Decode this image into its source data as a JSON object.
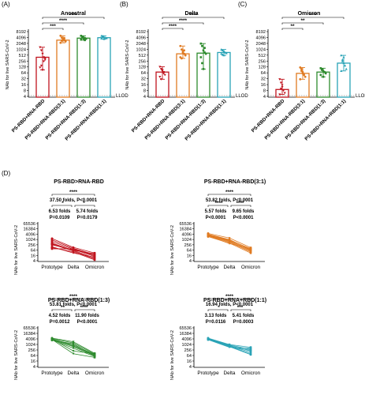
{
  "colors": {
    "red": "#c0141e",
    "orange": "#e07b22",
    "green": "#2e8b2e",
    "teal": "#2aa3b6",
    "dashed": "#666666"
  },
  "panel_labels": {
    "A": "(A)",
    "B": "(B)",
    "C": "(C)",
    "D": "(D)"
  },
  "ylabel": "NAb for live SARS-CoV-2",
  "lod_label": "LLOD",
  "top_categories": [
    "PS-RBD+RNA-RBD",
    "PS-RBD+RNA-RBD(3:1)",
    "PS-RBD+RNA-RBD(1:3)",
    "PS-RBD+RNA+RBD(1:1)"
  ],
  "top_yticks": [
    "8192",
    "4096",
    "2048",
    "1024",
    "512",
    "256",
    "128",
    "64",
    "32",
    "16",
    "8",
    "4"
  ],
  "bottom_yticks": [
    "65536",
    "16384",
    "4096",
    "1024",
    "256",
    "64",
    "16",
    "4"
  ],
  "bottom_xticks": [
    "Prototype",
    "Delta",
    "Omicron"
  ],
  "chart_data": [
    {
      "type": "bar",
      "panel": "A",
      "title": "Ancestral",
      "ylabel": "NAb for live SARS-CoV-2",
      "yscale": "log2",
      "ylim": [
        4,
        8192
      ],
      "categories": [
        "PS-RBD+RNA-RBD",
        "PS-RBD+RNA-RBD(3:1)",
        "PS-RBD+RNA-RBD(1:3)",
        "PS-RBD+RNA+RBD(1:1)"
      ],
      "values": [
        400,
        3000,
        3800,
        4000
      ],
      "points": [
        [
          1300,
          900,
          600,
          400,
          300,
          120,
          150,
          90,
          250,
          350
        ],
        [
          5000,
          4000,
          3500,
          3000,
          2600,
          2200,
          2800,
          3200,
          3800
        ],
        [
          5000,
          4500,
          4000,
          3800,
          3500,
          3200,
          4200,
          3600,
          3000
        ],
        [
          5000,
          4500,
          4200,
          4000,
          3800,
          3600,
          4800,
          3400
        ]
      ],
      "significance": [
        {
          "groups": [
            1,
            2
          ],
          "label": "***"
        },
        {
          "groups": [
            1,
            3
          ],
          "label": "****"
        },
        {
          "groups": [
            1,
            4
          ],
          "label": "****"
        }
      ]
    },
    {
      "type": "bar",
      "panel": "B",
      "title": "Delta",
      "ylabel": "NAb for live SARS-CoV-2",
      "yscale": "log2",
      "ylim": [
        4,
        8192
      ],
      "categories": [
        "PS-RBD+RNA-RBD",
        "PS-RBD+RNA-RBD(3:1)",
        "PS-RBD+RNA-RBD(1:3)",
        "PS-RBD+RNA+RBD(1:1)"
      ],
      "values": [
        70,
        600,
        650,
        700
      ],
      "points": [
        [
          130,
          100,
          80,
          60,
          50,
          40,
          30,
          90,
          70
        ],
        [
          1500,
          1000,
          800,
          600,
          500,
          400,
          350,
          700,
          900
        ],
        [
          2000,
          1500,
          900,
          700,
          600,
          400,
          200,
          100,
          1200
        ],
        [
          1000,
          900,
          800,
          700,
          650,
          600,
          550,
          500
        ]
      ],
      "significance": [
        {
          "groups": [
            1,
            2
          ],
          "label": "****"
        },
        {
          "groups": [
            1,
            3
          ],
          "label": "****"
        },
        {
          "groups": [
            1,
            4
          ],
          "label": "****"
        }
      ]
    },
    {
      "type": "bar",
      "panel": "C",
      "title": "Omicron",
      "ylabel": "NAb for live SARS-CoV-2",
      "yscale": "log2",
      "ylim": [
        4,
        8192
      ],
      "categories": [
        "PS-RBD+RNA-RBD",
        "PS-RBD+RNA-RBD(3:1)",
        "PS-RBD+RNA-RBD(1:3)",
        "PS-RBD+RNA+RBD(1:1)"
      ],
      "values": [
        9,
        60,
        70,
        200
      ],
      "points": [
        [
          30,
          20,
          12,
          8,
          6,
          5,
          10,
          15
        ],
        [
          120,
          80,
          60,
          50,
          40,
          30,
          100,
          70
        ],
        [
          110,
          90,
          80,
          70,
          60,
          50,
          100,
          40
        ],
        [
          500,
          300,
          200,
          150,
          100,
          80,
          250,
          400
        ]
      ],
      "significance": [
        {
          "groups": [
            1,
            2
          ],
          "label": "**"
        },
        {
          "groups": [
            1,
            3
          ],
          "label": "**"
        },
        {
          "groups": [
            1,
            4
          ],
          "label": "****"
        }
      ]
    },
    {
      "type": "line",
      "panel": "D1",
      "title": "PS-RBD>RNA-RBD",
      "x": [
        "Prototype",
        "Delta",
        "Omicron"
      ],
      "yscale": "log4",
      "ylim": [
        4,
        65536
      ],
      "series": [
        [
          1300,
          130,
          30
        ],
        [
          900,
          100,
          20
        ],
        [
          600,
          80,
          12
        ],
        [
          400,
          60,
          8
        ],
        [
          300,
          50,
          6
        ],
        [
          120,
          40,
          5
        ],
        [
          150,
          30,
          10
        ],
        [
          90,
          90,
          15
        ],
        [
          250,
          70,
          20
        ],
        [
          350,
          60,
          25
        ]
      ],
      "annotations": [
        "****",
        "37.50 folds, P<0.0001",
        "*",
        "*",
        "6.53 folds",
        "5.74 folds",
        "P=0.0109",
        "P=0.0179"
      ]
    },
    {
      "type": "line",
      "panel": "D2",
      "title": "PS-RBD+RNA-RBD(3:1)",
      "x": [
        "Prototype",
        "Delta",
        "Omicron"
      ],
      "yscale": "log4",
      "ylim": [
        4,
        65536
      ],
      "series": [
        [
          5000,
          1500,
          120
        ],
        [
          4000,
          1000,
          80
        ],
        [
          3500,
          800,
          60
        ],
        [
          3000,
          600,
          50
        ],
        [
          2600,
          500,
          40
        ],
        [
          2200,
          400,
          30
        ],
        [
          2800,
          350,
          100
        ],
        [
          3200,
          700,
          70
        ],
        [
          3800,
          900,
          90
        ]
      ],
      "annotations": [
        "****",
        "53.82 folds, P<0.0001",
        "****",
        "****",
        "5.57 folds",
        "9.65 folds",
        "P<0.0001",
        "P<0.0001"
      ]
    },
    {
      "type": "line",
      "panel": "D3",
      "title": "PS-RBD+RNA-RBD(1:3)",
      "x": [
        "Prototype",
        "Delta",
        "Omicron"
      ],
      "yscale": "log4",
      "ylim": [
        4,
        65536
      ],
      "series": [
        [
          5000,
          2000,
          110
        ],
        [
          4500,
          1500,
          90
        ],
        [
          4000,
          900,
          80
        ],
        [
          3800,
          700,
          70
        ],
        [
          3500,
          600,
          60
        ],
        [
          3200,
          400,
          50
        ],
        [
          4200,
          200,
          100
        ],
        [
          3600,
          100,
          40
        ],
        [
          3000,
          1200,
          60
        ]
      ],
      "annotations": [
        "****",
        "53.81 folds, P<0.0001",
        "**",
        "****",
        "4.52 folds",
        "11.90 folds",
        "P=0.0012",
        "P<0.0001"
      ]
    },
    {
      "type": "line",
      "panel": "D4",
      "title": "PS-RBD+RNA+RBD(1:1)",
      "x": [
        "Prototype",
        "Delta",
        "Omicron"
      ],
      "yscale": "log4",
      "ylim": [
        4,
        65536
      ],
      "series": [
        [
          5000,
          1000,
          500
        ],
        [
          4500,
          900,
          300
        ],
        [
          4200,
          800,
          200
        ],
        [
          4000,
          700,
          150
        ],
        [
          3800,
          650,
          100
        ],
        [
          3600,
          600,
          80
        ],
        [
          4800,
          550,
          250
        ],
        [
          3400,
          500,
          400
        ]
      ],
      "annotations": [
        "****",
        "16.94 folds, P<0.0001",
        "*",
        "***",
        "3.13 folds",
        "5.41 folds",
        "P=0.0116",
        "P=0.0003"
      ]
    }
  ]
}
